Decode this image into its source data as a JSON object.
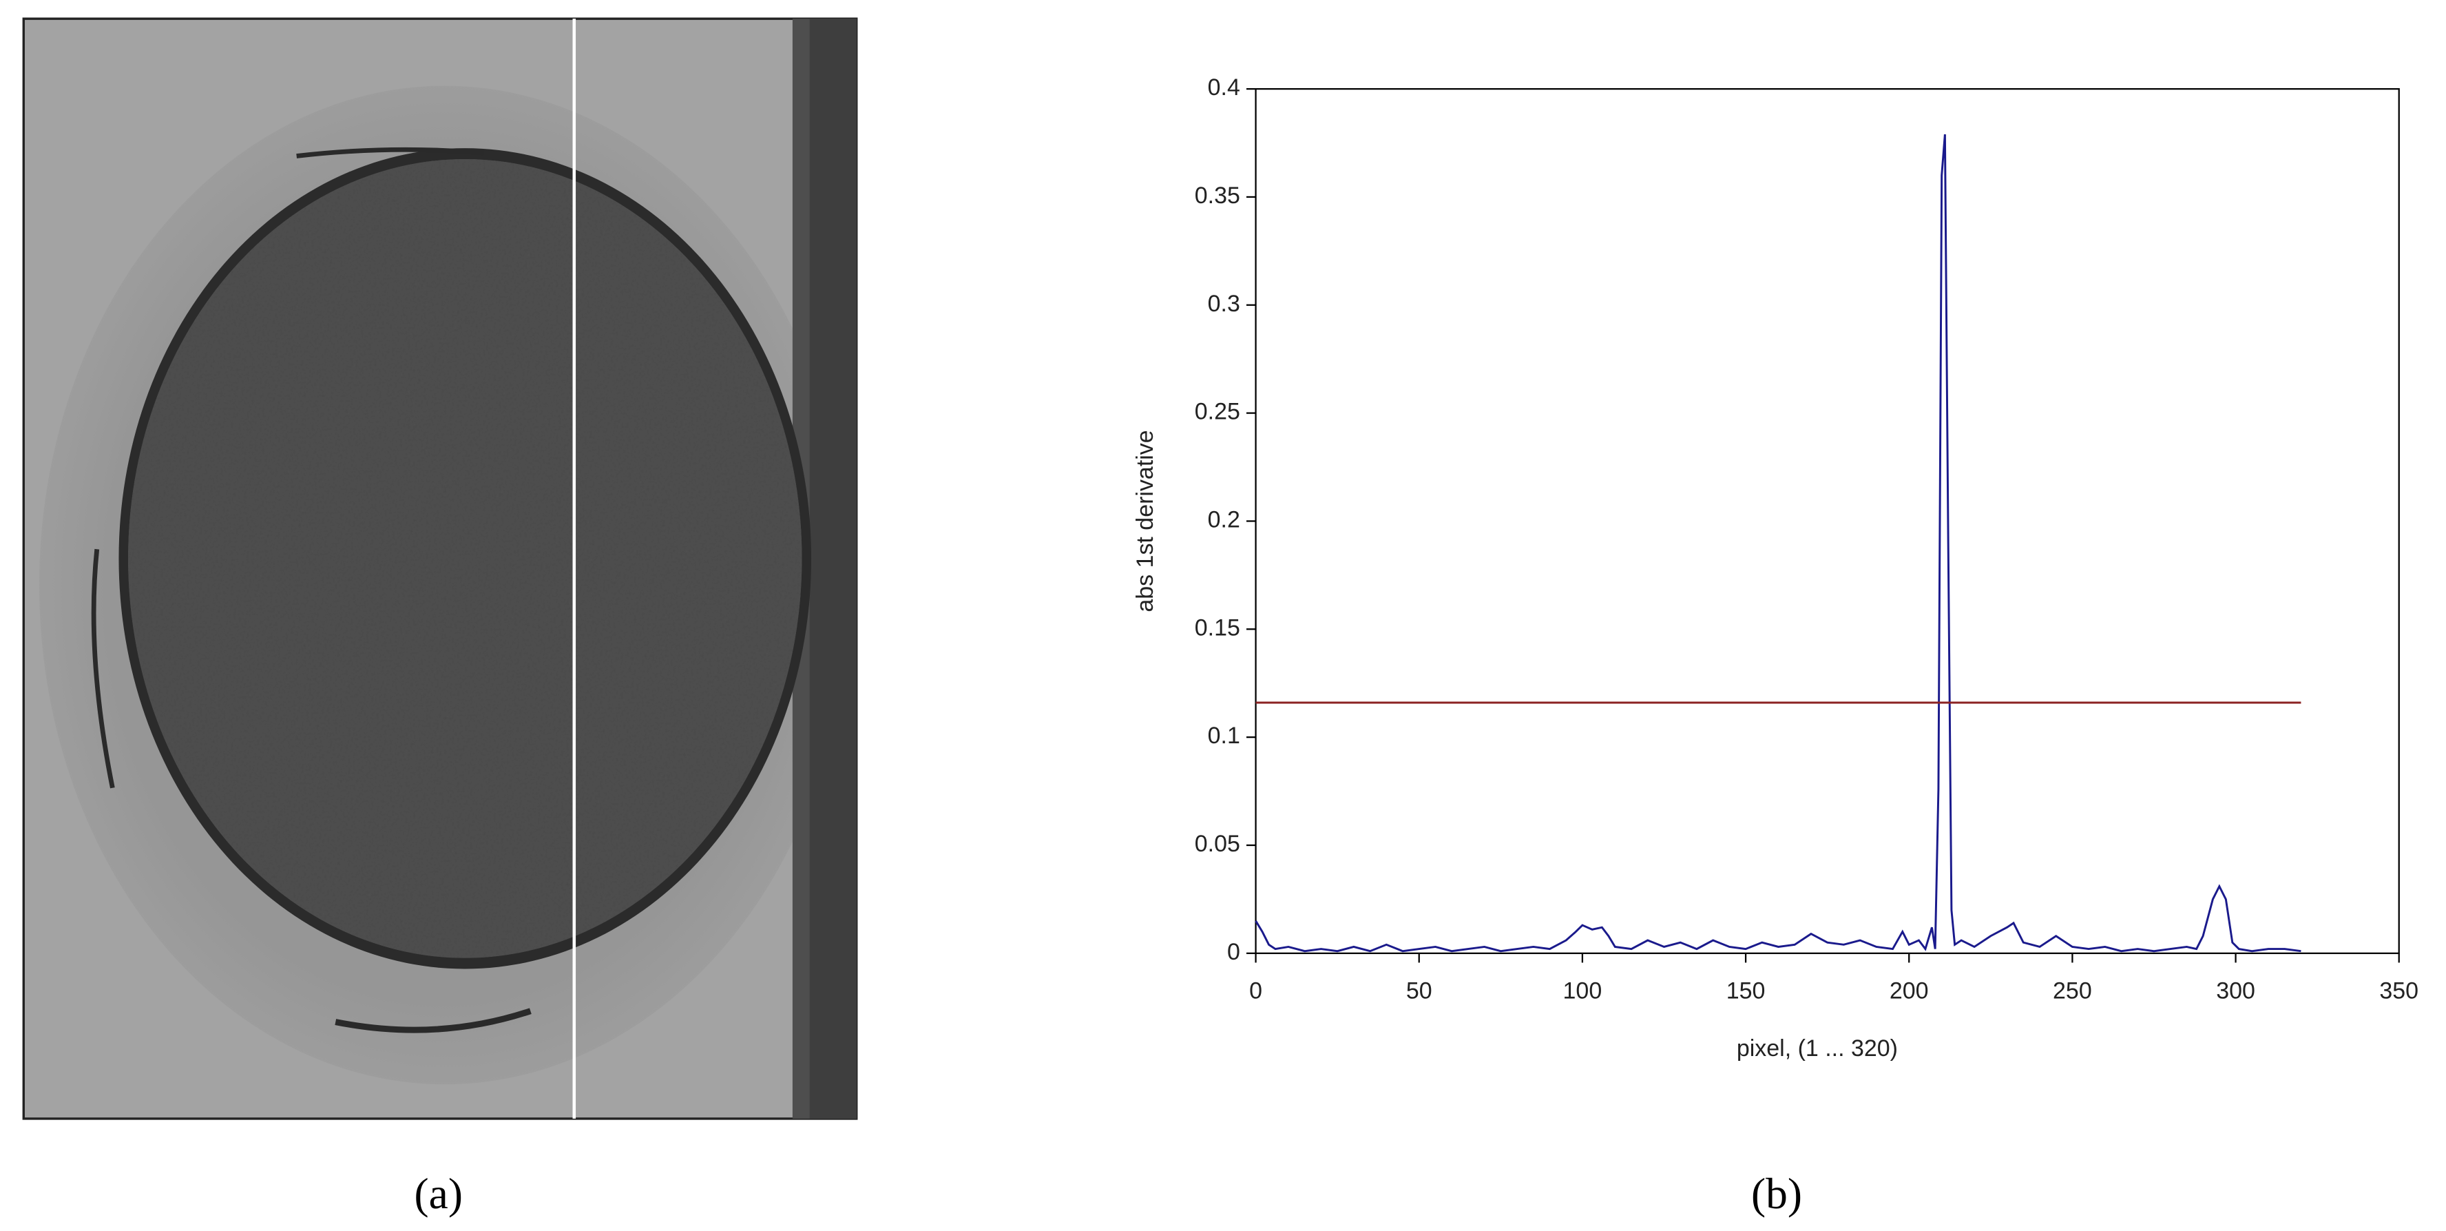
{
  "chart_data": {
    "type": "line",
    "xlabel": "pixel, (1 ... 320)",
    "ylabel": "abs 1st derivative",
    "xlim": [
      0,
      350
    ],
    "xticks": [
      0,
      50,
      100,
      150,
      200,
      250,
      300,
      350
    ],
    "ylim": [
      0,
      0.4
    ],
    "yticks": [
      0,
      0.05,
      0.1,
      0.15,
      0.2,
      0.25,
      0.3,
      0.35,
      0.4
    ],
    "series": [
      {
        "color": "#1a1a8c",
        "x": [
          0,
          2,
          4,
          6,
          10,
          15,
          20,
          25,
          30,
          35,
          40,
          45,
          50,
          55,
          60,
          65,
          70,
          75,
          80,
          85,
          90,
          95,
          98,
          100,
          103,
          106,
          108,
          110,
          115,
          120,
          125,
          130,
          135,
          140,
          145,
          150,
          155,
          160,
          165,
          170,
          175,
          180,
          185,
          190,
          195,
          198,
          200,
          203,
          205,
          207,
          208,
          209,
          210,
          211,
          212,
          213,
          214,
          216,
          220,
          225,
          230,
          232,
          235,
          240,
          245,
          250,
          255,
          260,
          265,
          270,
          275,
          280,
          285,
          288,
          290,
          293,
          295,
          297,
          299,
          301,
          305,
          310,
          315,
          320
        ],
        "values": [
          0.015,
          0.01,
          0.004,
          0.002,
          0.003,
          0.001,
          0.002,
          0.001,
          0.003,
          0.001,
          0.004,
          0.001,
          0.002,
          0.003,
          0.001,
          0.002,
          0.003,
          0.001,
          0.002,
          0.003,
          0.002,
          0.006,
          0.01,
          0.013,
          0.011,
          0.012,
          0.008,
          0.003,
          0.002,
          0.006,
          0.003,
          0.005,
          0.002,
          0.006,
          0.003,
          0.002,
          0.005,
          0.003,
          0.004,
          0.009,
          0.005,
          0.004,
          0.006,
          0.003,
          0.002,
          0.01,
          0.004,
          0.006,
          0.002,
          0.012,
          0.002,
          0.076,
          0.36,
          0.379,
          0.19,
          0.02,
          0.004,
          0.006,
          0.003,
          0.008,
          0.012,
          0.014,
          0.005,
          0.003,
          0.008,
          0.003,
          0.002,
          0.003,
          0.001,
          0.002,
          0.001,
          0.002,
          0.003,
          0.002,
          0.008,
          0.025,
          0.031,
          0.025,
          0.005,
          0.002,
          0.001,
          0.002,
          0.002,
          0.001
        ]
      },
      {
        "color": "#8b2323",
        "x": [
          0,
          320
        ],
        "values": [
          0.116,
          0.116
        ]
      }
    ]
  },
  "panel_labels": [
    "(a)",
    "(b)"
  ]
}
